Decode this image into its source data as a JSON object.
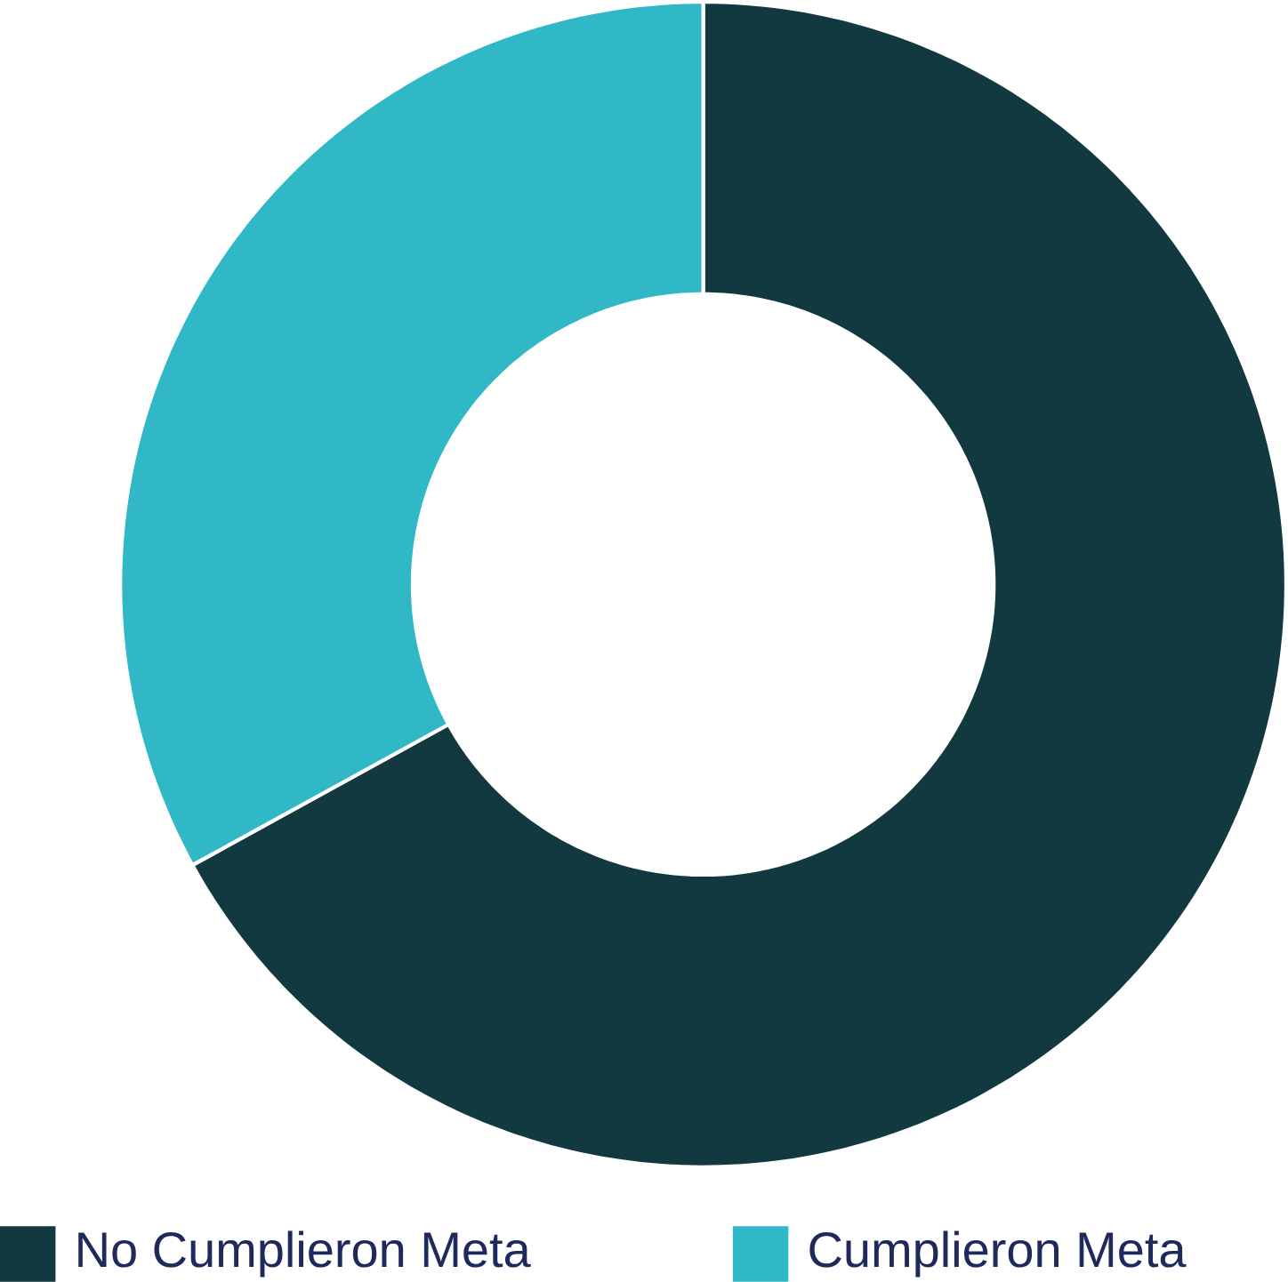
{
  "chart_data": {
    "type": "donut",
    "categories": [
      "No Cumplieron Meta",
      "Cumplieron Meta"
    ],
    "values": [
      67,
      33
    ],
    "colors": [
      "#12393f",
      "#31b8c6"
    ],
    "legend": "bottom"
  }
}
